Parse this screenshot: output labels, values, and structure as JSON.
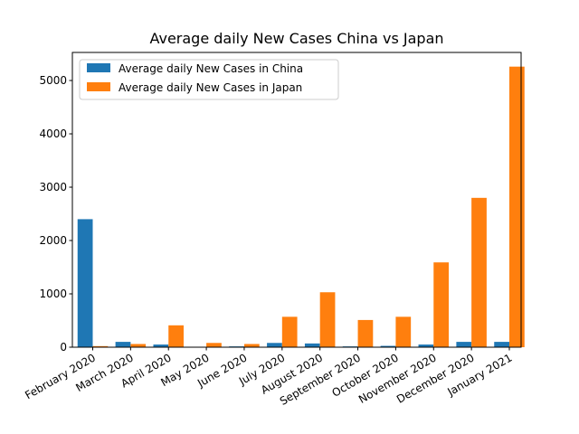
{
  "chart_data": {
    "type": "bar",
    "title": "Average daily New Cases China vs Japan",
    "xlabel": "",
    "ylabel": "",
    "categories": [
      "February 2020",
      "March 2020",
      "April 2020",
      "May 2020",
      "June 2020",
      "July 2020",
      "August 2020",
      "September 2020",
      "October 2020",
      "November 2020",
      "December 2020",
      "January 2021"
    ],
    "series": [
      {
        "name": "Average daily New Cases in China",
        "color": "#1f77b4",
        "values": [
          2400,
          100,
          50,
          5,
          15,
          80,
          70,
          15,
          25,
          50,
          100,
          100
        ]
      },
      {
        "name": "Average daily New Cases in Japan",
        "color": "#ff7f0e",
        "values": [
          20,
          60,
          410,
          80,
          60,
          570,
          1030,
          510,
          570,
          1590,
          2800,
          5260
        ]
      }
    ],
    "ylim": [
      0,
      5526
    ],
    "yticks": [
      0,
      1000,
      2000,
      3000,
      4000,
      5000
    ],
    "legend_position": "top-left",
    "grid": false
  }
}
